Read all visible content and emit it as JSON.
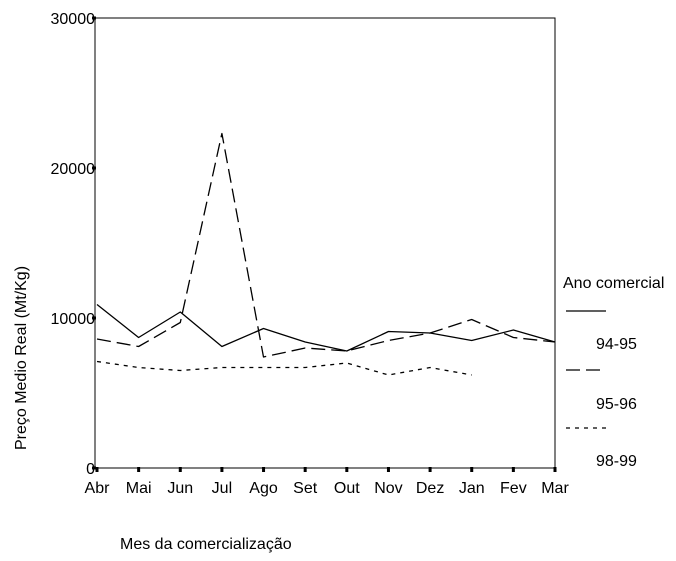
{
  "chart_data": {
    "type": "line",
    "title": "",
    "xlabel": "Mes da comercialização",
    "ylabel": "Preço Medio Real (Mt/Kg)",
    "ylim": [
      0,
      30000
    ],
    "yticks": [
      0,
      10000,
      20000,
      30000
    ],
    "ytick_labels": [
      "0",
      "10000",
      "20000",
      "30000"
    ],
    "categories": [
      "Abr",
      "Mai",
      "Jun",
      "Jul",
      "Ago",
      "Set",
      "Out",
      "Nov",
      "Dez",
      "Jan",
      "Fev",
      "Mar"
    ],
    "grid": false,
    "legend": {
      "title": "Ano comercial",
      "placement": "right"
    },
    "series": [
      {
        "name": "94-95",
        "line_style": "solid",
        "color": "#000000",
        "values": [
          10900,
          8700,
          10400,
          8100,
          9300,
          8400,
          7800,
          9100,
          9000,
          8500,
          9200,
          8400
        ]
      },
      {
        "name": "95-96",
        "line_style": "dashed",
        "color": "#000000",
        "values": [
          8600,
          8100,
          9700,
          22300,
          7400,
          8000,
          7800,
          8500,
          9000,
          9900,
          8700,
          8400
        ]
      },
      {
        "name": "98-99",
        "line_style": "dotted",
        "color": "#000000",
        "values": [
          7100,
          6700,
          6500,
          6700,
          6700,
          6700,
          7000,
          6200,
          6700,
          6200,
          null,
          null
        ]
      }
    ]
  }
}
